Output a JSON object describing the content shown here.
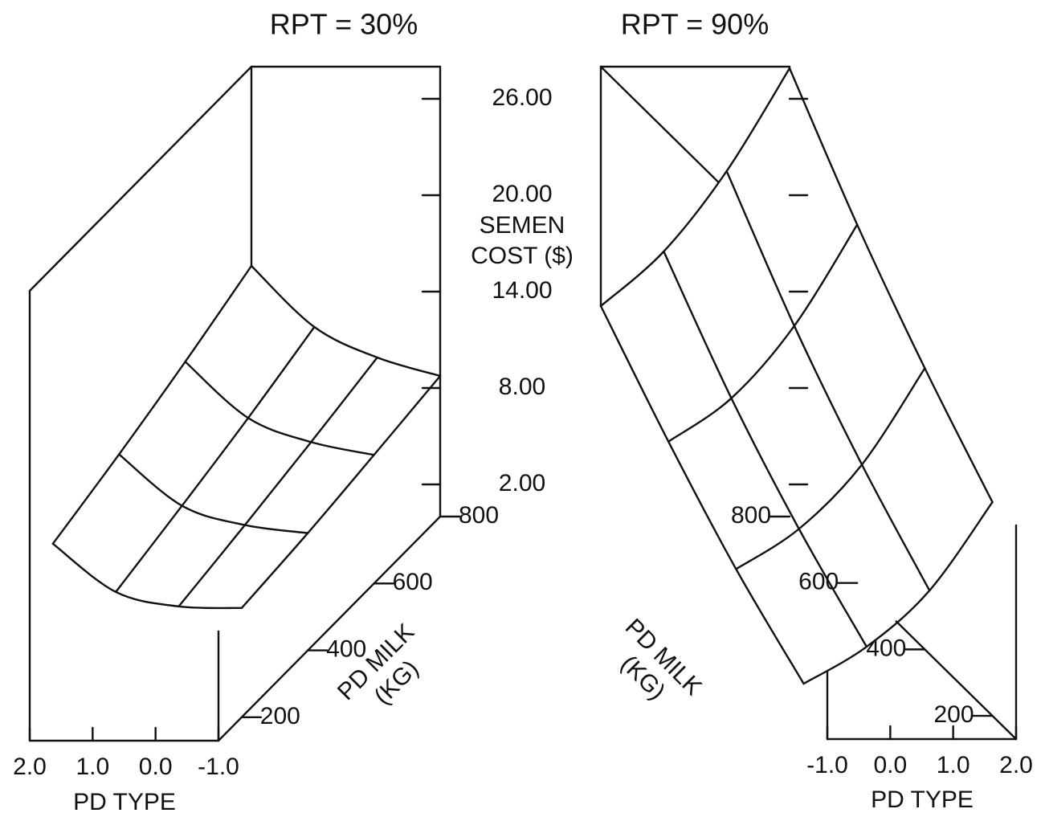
{
  "chart_data": [
    {
      "type": "surface",
      "title": "RPT = 30%",
      "xlabel": "PD TYPE",
      "ylabel": [
        "PD MILK",
        "(KG)"
      ],
      "zlabel": [
        "SEMEN",
        "COST ($)"
      ],
      "xlim": [
        -1,
        2
      ],
      "ylim": [
        130,
        800
      ],
      "zlim": [
        0,
        28
      ],
      "xticks": [
        {
          "value": 2,
          "label": "2.0"
        },
        {
          "value": 1,
          "label": "1.0"
        },
        {
          "value": 0,
          "label": "0.0"
        },
        {
          "value": -1,
          "label": "-1.0"
        }
      ],
      "yticks": [
        200,
        400,
        600,
        800
      ],
      "zticks": [
        {
          "value": 2,
          "label": "2.00"
        },
        {
          "value": 8,
          "label": "8.00"
        },
        {
          "value": 14,
          "label": "14.00"
        },
        {
          "value": 20,
          "label": "20.00"
        },
        {
          "value": 26,
          "label": "26.00"
        }
      ],
      "z": [
        [
          10.8,
          12.2,
          13.8,
          15.6
        ],
        [
          7.8,
          9.0,
          10.3,
          11.8
        ],
        [
          6.9,
          7.8,
          8.8,
          9.9
        ],
        [
          6.8,
          7.3,
          8.0,
          8.75
        ]
      ]
    },
    {
      "type": "surface",
      "title": "RPT = 90%",
      "xlabel": "PD TYPE",
      "ylabel": [
        "PD MILK",
        "(KG)"
      ],
      "xlim": [
        -1,
        2
      ],
      "ylim": [
        130,
        800
      ],
      "zlim": [
        0,
        28
      ],
      "xticks": [
        {
          "value": -1,
          "label": "-1.0"
        },
        {
          "value": 0,
          "label": "0.0"
        },
        {
          "value": 1,
          "label": "1.0"
        },
        {
          "value": 2,
          "label": "2.0"
        }
      ],
      "yticks": [
        200,
        400,
        600,
        800
      ],
      "zticks": [
        2,
        8,
        14,
        20,
        26
      ],
      "z": [
        [
          2.0,
          5.0,
          8.8,
          13.1
        ],
        [
          4.3,
          7.5,
          11.5,
          16.5
        ],
        [
          7.8,
          11.5,
          16.0,
          21.5
        ],
        [
          13.3,
          17.5,
          22.3,
          27.9
        ]
      ]
    }
  ]
}
